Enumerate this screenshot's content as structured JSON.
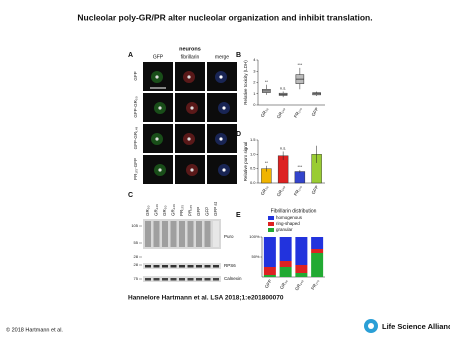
{
  "header": {
    "title": "Nucleolar poly-GR/PR alter nucleolar organization and inhibit translation."
  },
  "panel_a": {
    "label": "A",
    "group": "neurons",
    "columns": [
      "GFP",
      "fibrillarin",
      "merge"
    ],
    "column_colors": [
      "#33aa33",
      "#dd2222",
      "#111111"
    ],
    "rows": [
      "GFP",
      "GFP-GR₅₀",
      "GFP-GR₁₄₉",
      "PR₁₇₅-GFP"
    ]
  },
  "panel_b": {
    "label": "B",
    "type": "box",
    "ylabel": "Relative toxicity (LDH)",
    "categories": [
      "GR₅₀",
      "GR₁₄₉",
      "PR₁₇₅",
      "GFP"
    ],
    "boxes": [
      {
        "min": 0.9,
        "q1": 1.1,
        "median": 1.25,
        "q3": 1.4,
        "max": 1.8
      },
      {
        "min": 0.7,
        "q1": 0.85,
        "median": 0.95,
        "q3": 1.05,
        "max": 1.2
      },
      {
        "min": 1.4,
        "q1": 1.9,
        "median": 2.3,
        "q3": 2.7,
        "max": 3.3
      },
      {
        "min": 0.8,
        "q1": 0.9,
        "median": 1.0,
        "q3": 1.1,
        "max": 1.2
      }
    ],
    "annotations": [
      "**",
      "n.s.",
      "***",
      null
    ],
    "ylim": [
      0,
      4
    ],
    "yticks": [
      0,
      1,
      2,
      3,
      4
    ],
    "color": "#bbbbbb"
  },
  "panel_c": {
    "label": "C",
    "lanes": [
      "GR₅₀",
      "GR₁₄₉",
      "GR₅₀",
      "GR₁₄₉",
      "PR₁₇₅",
      "PR₁₇₅",
      "GFP",
      "GFP",
      "GFP st"
    ],
    "markers": [
      "105",
      "55",
      "28",
      "28",
      "75"
    ],
    "blots": [
      "Puro",
      "RPS6",
      "Calnexin"
    ]
  },
  "panel_d": {
    "label": "D",
    "type": "bar",
    "ylabel": "Relative puro signal",
    "categories": [
      "GR₅₀",
      "GR₁₄₉",
      "PR₁₇₅",
      "GFP"
    ],
    "values": [
      0.5,
      0.95,
      0.4,
      1.0
    ],
    "errors": [
      0.1,
      0.15,
      0.05,
      0.3
    ],
    "colors": [
      "#f0b400",
      "#dd2222",
      "#3344cc",
      "#99cc33"
    ],
    "annotations": [
      "**",
      "n.s.",
      "***",
      null
    ],
    "ylim": [
      0,
      1.5
    ],
    "yticks": [
      {
        "value": 0,
        "label": "0.0"
      },
      {
        "value": 0.5,
        "label": "0.5"
      },
      {
        "value": 1,
        "label": "1.0"
      },
      {
        "value": 1.5,
        "label": "1.5"
      }
    ]
  },
  "panel_e": {
    "label": "E",
    "type": "stacked-bar",
    "title": "Fibrillarin distribution",
    "categories": [
      "GFP",
      "GR₅₀",
      "GR₁₄₉",
      "PR₁₇₅"
    ],
    "series": [
      {
        "name": "homogenous",
        "color": "#2233dd",
        "values": [
          75,
          60,
          70,
          30
        ]
      },
      {
        "name": "ring-shaped",
        "color": "#dd2222",
        "values": [
          20,
          15,
          20,
          10
        ]
      },
      {
        "name": "granular",
        "color": "#22aa33",
        "values": [
          5,
          25,
          10,
          60
        ]
      }
    ],
    "ylim": [
      0,
      100
    ],
    "yticks": [
      {
        "value": 50,
        "label": "50%"
      },
      {
        "value": 100,
        "label": "100%"
      }
    ]
  },
  "citation": "Hannelore Hartmann et al. LSA 2018;1:e201800070",
  "footer": {
    "copyright": "© 2018 Hartmann et al.",
    "journal": "Life Science Alliance"
  }
}
